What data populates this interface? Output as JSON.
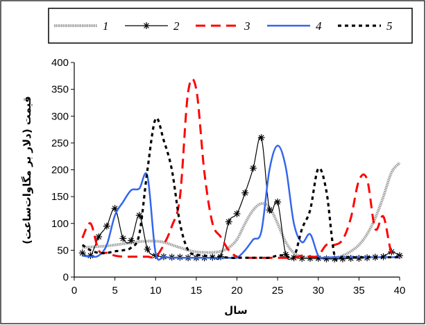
{
  "chart_data": {
    "type": "line",
    "title": "",
    "xlabel": "سال",
    "ylabel": "قیمت (دلار بر مگاوات‌ساعت)",
    "xlim": [
      0,
      40
    ],
    "ylim": [
      0,
      400
    ],
    "x_ticks": [
      0,
      5,
      10,
      15,
      20,
      25,
      30,
      35,
      40
    ],
    "y_ticks": [
      0,
      50,
      100,
      150,
      200,
      250,
      300,
      350,
      400
    ],
    "grid": false,
    "legend_position": "top",
    "series": [
      {
        "name": "1",
        "color": "#9a9a9a",
        "style": "thick-gray",
        "x": [
          1,
          2,
          3,
          4,
          5,
          6,
          7,
          8,
          9,
          10,
          11,
          12,
          13,
          14,
          15,
          16,
          17,
          18,
          19,
          20,
          21,
          22,
          23,
          24,
          25,
          26,
          27,
          28,
          29,
          30,
          31,
          32,
          33,
          34,
          35,
          36,
          37,
          38,
          39,
          40
        ],
        "values": [
          55,
          56,
          57,
          58,
          60,
          62,
          64,
          66,
          67,
          67,
          65,
          60,
          55,
          50,
          47,
          46,
          46,
          48,
          55,
          70,
          100,
          125,
          137,
          130,
          100,
          65,
          45,
          38,
          36,
          35,
          35,
          36,
          40,
          48,
          60,
          80,
          110,
          150,
          195,
          213
        ]
      },
      {
        "name": "2",
        "color": "#000000",
        "style": "line-star",
        "x": [
          1,
          2,
          3,
          4,
          5,
          6,
          7,
          8,
          9,
          10,
          11,
          12,
          13,
          14,
          15,
          16,
          17,
          18,
          19,
          20,
          21,
          22,
          23,
          24,
          25,
          26,
          27,
          28,
          29,
          30,
          31,
          32,
          33,
          34,
          35,
          36,
          37,
          38,
          39,
          40
        ],
        "values": [
          45,
          40,
          75,
          95,
          128,
          72,
          68,
          115,
          52,
          40,
          38,
          37,
          37,
          36,
          36,
          36,
          37,
          38,
          103,
          118,
          157,
          203,
          260,
          125,
          140,
          42,
          36,
          35,
          35,
          35,
          34,
          34,
          34,
          35,
          35,
          36,
          37,
          38,
          47,
          40
        ]
      },
      {
        "name": "3",
        "color": "#ff0000",
        "style": "dashed-red",
        "x": [
          1,
          2,
          3,
          4,
          5,
          6,
          7,
          8,
          9,
          10,
          11,
          12,
          13,
          14,
          15,
          16,
          17,
          18,
          19,
          20,
          21,
          22,
          23,
          24,
          25,
          26,
          27,
          28,
          29,
          30,
          31,
          32,
          33,
          34,
          35,
          36,
          37,
          38,
          39,
          40
        ],
        "values": [
          73,
          100,
          50,
          45,
          40,
          38,
          38,
          38,
          38,
          38,
          60,
          95,
          150,
          345,
          350,
          195,
          100,
          75,
          50,
          38,
          36,
          36,
          36,
          36,
          36,
          36,
          36,
          40,
          38,
          40,
          60,
          60,
          70,
          110,
          180,
          182,
          90,
          113,
          45,
          37
        ]
      },
      {
        "name": "4",
        "color": "#3366ee",
        "style": "solid-blue",
        "x": [
          1,
          2,
          3,
          4,
          5,
          6,
          7,
          8,
          9,
          10,
          11,
          12,
          13,
          14,
          15,
          16,
          17,
          18,
          19,
          20,
          21,
          22,
          23,
          24,
          25,
          26,
          27,
          28,
          29,
          30,
          31,
          32,
          33,
          34,
          35,
          36,
          37,
          38,
          39,
          40
        ],
        "values": [
          40,
          38,
          40,
          60,
          115,
          140,
          162,
          165,
          188,
          45,
          38,
          36,
          36,
          36,
          36,
          36,
          36,
          36,
          36,
          36,
          50,
          70,
          85,
          200,
          245,
          205,
          100,
          65,
          80,
          40,
          37,
          37,
          37,
          37,
          37,
          37,
          37,
          37,
          37,
          37
        ]
      },
      {
        "name": "5",
        "color": "#000000",
        "style": "dotted-black",
        "x": [
          1,
          2,
          3,
          4,
          5,
          6,
          7,
          8,
          9,
          10,
          11,
          12,
          13,
          14,
          15,
          16,
          17,
          18,
          19,
          20,
          21,
          22,
          23,
          24,
          25,
          26,
          27,
          28,
          29,
          30,
          31,
          32,
          33,
          34,
          35,
          36,
          37,
          38,
          39,
          40
        ],
        "values": [
          60,
          50,
          45,
          45,
          48,
          50,
          55,
          80,
          200,
          295,
          255,
          200,
          100,
          50,
          42,
          40,
          38,
          38,
          36,
          36,
          36,
          36,
          36,
          36,
          40,
          40,
          37,
          90,
          125,
          202,
          160,
          40,
          38,
          37,
          37,
          37,
          37,
          37,
          37,
          37
        ]
      }
    ]
  }
}
